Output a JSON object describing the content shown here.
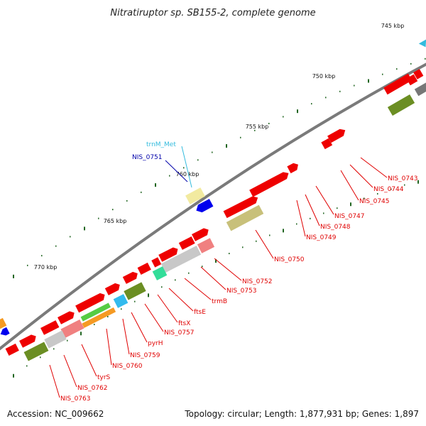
{
  "title": "Nitratiruptor sp. SB155-2, complete genome",
  "footer": {
    "accession": "Accession: NC_009662",
    "summary": "Topology: circular; Length: 1,877,931 bp; Genes: 1,897"
  },
  "scale_labels": [
    "745 kbp",
    "750 kbp",
    "755 kbp",
    "760 kbp",
    "765 kbp",
    "770 kbp"
  ],
  "gene_labels": [
    {
      "text": "NIS_0743",
      "color": "#e00000"
    },
    {
      "text": "NIS_0744",
      "color": "#e00000"
    },
    {
      "text": "NIS_0745",
      "color": "#e00000"
    },
    {
      "text": "NIS_0747",
      "color": "#e00000"
    },
    {
      "text": "NIS_0748",
      "color": "#e00000"
    },
    {
      "text": "NIS_0749",
      "color": "#e00000"
    },
    {
      "text": "NIS_0750",
      "color": "#e00000"
    },
    {
      "text": "NIS_0752",
      "color": "#e00000"
    },
    {
      "text": "NIS_0753",
      "color": "#e00000"
    },
    {
      "text": "trmB",
      "color": "#e00000"
    },
    {
      "text": "ftsE",
      "color": "#e00000"
    },
    {
      "text": "ftsX",
      "color": "#e00000"
    },
    {
      "text": "NIS_0757",
      "color": "#e00000"
    },
    {
      "text": "pyrH",
      "color": "#e00000"
    },
    {
      "text": "NIS_0759",
      "color": "#e00000"
    },
    {
      "text": "NIS_0760",
      "color": "#e00000"
    },
    {
      "text": "tyrS",
      "color": "#e00000"
    },
    {
      "text": "NIS_0762",
      "color": "#e00000"
    },
    {
      "text": "NIS_0763",
      "color": "#e00000"
    },
    {
      "text": "trnM_Met",
      "color": "#33bbdd"
    },
    {
      "text": "NIS_0751",
      "color": "#0000aa"
    }
  ],
  "colors": {
    "backbone": "#888888",
    "cds_forward": "#ee0000",
    "tick": "#226622",
    "cog_olive": "#6b8e23",
    "cog_khaki": "#c8c07a",
    "cog_pink": "#f08080",
    "cog_grey": "#c8c8c8",
    "cog_green": "#33dd99",
    "cog_orange": "#f59a23",
    "cog_cyan": "#33bbee",
    "trna": "#33bbdd",
    "rev_cds": "#0000ee"
  }
}
